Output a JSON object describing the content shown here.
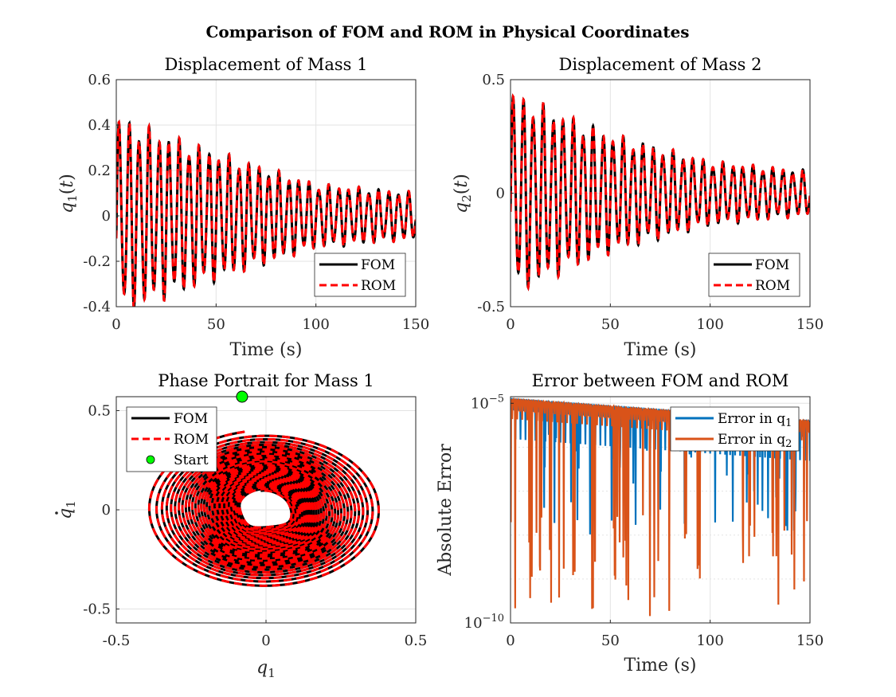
{
  "title": "Comparison of FOM and ROM in Physical Coordinates",
  "panel_titles": [
    "Displacement of Mass 1",
    "Displacement of Mass 2",
    "Phase Portrait for Mass 1",
    "Error between FOM and ROM"
  ],
  "axis_labels": {
    "p1_x": "Time (s)",
    "p1_y": "q",
    "p2_x": "Time (s)",
    "p2_y": "q",
    "p3_x": "q",
    "p3_y": "q",
    "p4_x": "Time (s)",
    "p4_y": "Absolute Error"
  },
  "legend_labels": {
    "fom": "FOM",
    "rom": "ROM",
    "start": "Start",
    "err_q1": "Error in q",
    "err_q2": "Error in q"
  },
  "colors": {
    "fom": "#000000",
    "rom": "#ff0000",
    "start_fill": "#00ff00",
    "err_q1": "#0072bd",
    "err_q2": "#d95319",
    "grid": "#e3e3e3"
  },
  "chart_data": [
    {
      "type": "line",
      "title": "Displacement of Mass 1",
      "xlabel": "Time (s)",
      "ylabel": "q1(t)",
      "xlim": [
        0,
        150
      ],
      "ylim": [
        -0.4,
        0.6
      ],
      "xticks": [
        0,
        50,
        100,
        150
      ],
      "xtick_labels": [
        "0",
        "50",
        "100",
        "150"
      ],
      "yticks": [
        -0.4,
        -0.2,
        0,
        0.2,
        0.4,
        0.6
      ],
      "ytick_labels": [
        "-0.4",
        "-0.2",
        "0",
        "0.2",
        "0.4",
        "0.6"
      ],
      "grid": true,
      "legend": "bottom-right",
      "series": [
        {
          "name": "FOM",
          "style": "solid",
          "envelope_amplitude": {
            "t": [
              0,
              50,
              100,
              150
            ],
            "amp": [
              0.4,
              0.26,
              0.13,
              0.095
            ]
          },
          "oscillation_period": 5.0
        },
        {
          "name": "ROM",
          "style": "dashed",
          "envelope_amplitude": {
            "t": [
              0,
              50,
              100,
              150
            ],
            "amp": [
              0.4,
              0.26,
              0.13,
              0.095
            ]
          },
          "oscillation_period": 5.0
        }
      ]
    },
    {
      "type": "line",
      "title": "Displacement of Mass 2",
      "xlabel": "Time (s)",
      "ylabel": "q2(t)",
      "xlim": [
        0,
        150
      ],
      "ylim": [
        -0.5,
        0.5
      ],
      "xticks": [
        0,
        50,
        100,
        150
      ],
      "xtick_labels": [
        "0",
        "50",
        "100",
        "150"
      ],
      "yticks": [
        -0.5,
        0,
        0.5
      ],
      "ytick_labels": [
        "-0.5",
        "0",
        "0.5"
      ],
      "grid": true,
      "legend": "bottom-right",
      "series": [
        {
          "name": "FOM",
          "style": "solid",
          "envelope_amplitude": {
            "t": [
              0,
              50,
              100,
              150
            ],
            "amp": [
              0.41,
              0.24,
              0.13,
              0.09
            ]
          },
          "oscillation_period": 5.0
        },
        {
          "name": "ROM",
          "style": "dashed",
          "envelope_amplitude": {
            "t": [
              0,
              50,
              100,
              150
            ],
            "amp": [
              0.41,
              0.24,
              0.13,
              0.09
            ]
          },
          "oscillation_period": 5.0
        }
      ]
    },
    {
      "type": "line",
      "title": "Phase Portrait for Mass 1",
      "xlabel": "q1",
      "ylabel": "q̇1",
      "xlim": [
        -0.5,
        0.5
      ],
      "ylim": [
        -0.57,
        0.57
      ],
      "xticks": [
        -0.5,
        0,
        0.5
      ],
      "xtick_labels": [
        "-0.5",
        "0",
        "0.5"
      ],
      "yticks": [
        -0.5,
        0,
        0.5
      ],
      "ytick_labels": [
        "-0.5",
        "0",
        "0.5"
      ],
      "grid": true,
      "legend": "top-left",
      "outer_radius": 0.4,
      "inner_radius": 0.09,
      "turns": 30,
      "series": [
        {
          "name": "FOM",
          "style": "solid"
        },
        {
          "name": "ROM",
          "style": "dashed"
        }
      ],
      "start_point": {
        "name": "Start",
        "x": -0.08,
        "y": 0.57
      }
    },
    {
      "type": "line",
      "title": "Error between FOM and ROM",
      "xlabel": "Time (s)",
      "ylabel": "Absolute Error",
      "xlim": [
        0,
        150
      ],
      "ylim_log10": [
        -10,
        -4.85
      ],
      "yscale": "log",
      "xticks": [
        0,
        50,
        100,
        150
      ],
      "xtick_labels": [
        "0",
        "50",
        "100",
        "150"
      ],
      "yticks_log10": [
        -10,
        -5
      ],
      "grid": true,
      "legend": "top-right",
      "series": [
        {
          "name": "Error in q1",
          "typical_log10": [
            -5.6,
            -4.9
          ],
          "min_log10": -8.0
        },
        {
          "name": "Error in q2",
          "typical_log10": [
            -5.6,
            -4.9
          ],
          "min_log10": -10.0
        }
      ]
    }
  ]
}
